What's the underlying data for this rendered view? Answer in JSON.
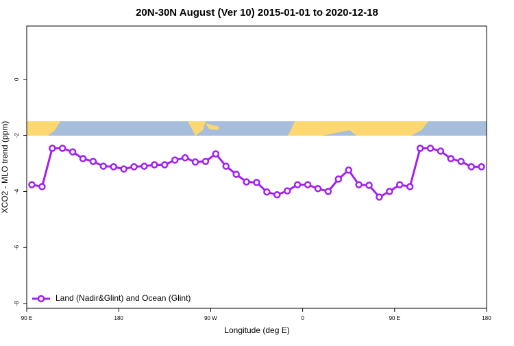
{
  "chart_data": {
    "type": "line",
    "title": "20N-30N August (Ver 10)   2015-01-01 to 2020-12-18",
    "xlabel": "Longitude (deg E)",
    "ylabel": "XCO2 - MLO trend (ppm)",
    "x": [
      95,
      105,
      115,
      125,
      135,
      145,
      155,
      165,
      175,
      185,
      195,
      205,
      215,
      225,
      235,
      245,
      255,
      265,
      275,
      285,
      295,
      305,
      315,
      325,
      335,
      345,
      355,
      365,
      375,
      385,
      395,
      405,
      415,
      425,
      435,
      445,
      455,
      465,
      475,
      485,
      495,
      505,
      515,
      525,
      535
    ],
    "series": [
      {
        "name": "Land (Nadir&Glint) and Ocean (Glint)",
        "color": "#a020f0",
        "values": [
          -3.76,
          -3.83,
          -2.46,
          -2.46,
          -2.59,
          -2.83,
          -2.93,
          -3.1,
          -3.12,
          -3.2,
          -3.12,
          -3.1,
          -3.05,
          -3.05,
          -2.88,
          -2.8,
          -2.95,
          -2.93,
          -2.66,
          -3.1,
          -3.39,
          -3.66,
          -3.68,
          -4.02,
          -4.12,
          -3.98,
          -3.76,
          -3.76,
          -3.9,
          -4.0,
          -3.56,
          -3.24,
          -3.76,
          -3.78,
          -4.2,
          -4.0,
          -3.76,
          -3.83,
          -2.46,
          -2.46,
          -2.56,
          -2.83,
          -2.93,
          -3.12,
          -3.12
        ]
      }
    ],
    "xlim": [
      90,
      540
    ],
    "xticks": [
      {
        "value": 90,
        "label": "90 E"
      },
      180,
      {
        "value": 270,
        "label": "90 W"
      },
      {
        "value": 360,
        "label": "0"
      },
      {
        "value": 450,
        "label": "90 E"
      },
      {
        "value": 540,
        "label": "180"
      }
    ],
    "ylim": [
      -8.17,
      1.9
    ],
    "yticks": [
      0,
      -2,
      -4,
      -6,
      -8
    ],
    "legend": "bottom-left"
  }
}
